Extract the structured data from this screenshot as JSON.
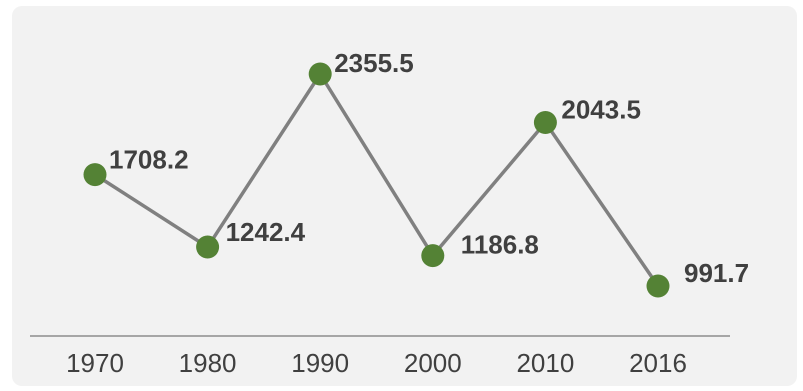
{
  "chart_data": {
    "type": "line",
    "categories": [
      "1970",
      "1980",
      "1990",
      "2000",
      "2010",
      "2016"
    ],
    "series": [
      {
        "values": [
          1708.2,
          1242.4,
          2355.5,
          1186.8,
          2043.5,
          991.7
        ],
        "labels": [
          "1708.2",
          "1242.4",
          "2355.5",
          "1186.8",
          "2043.5",
          "991.7"
        ],
        "line_color": "#808080",
        "marker_color": "#548235"
      }
    ],
    "title": "",
    "xlabel": "",
    "ylabel": "",
    "grid": false,
    "legend": "none"
  }
}
